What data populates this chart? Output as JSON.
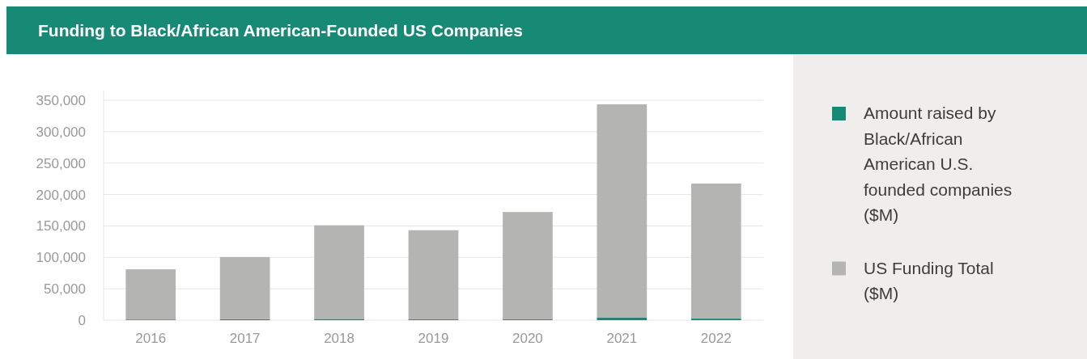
{
  "chart_data": {
    "type": "bar",
    "title": "Funding to Black/African American-Founded US Companies",
    "categories": [
      "2016",
      "2017",
      "2018",
      "2019",
      "2020",
      "2021",
      "2022"
    ],
    "stacked": true,
    "series": [
      {
        "name": "Amount raised by Black/African American U.S. founded companies ($M)",
        "color": "#178a76",
        "values": [
          1000,
          1500,
          2000,
          1200,
          1200,
          4500,
          2500
        ]
      },
      {
        "name": "US Funding Total ($M)",
        "color": "#b4b4b2",
        "values": [
          80000,
          99000,
          149000,
          142000,
          171000,
          339000,
          215000
        ]
      }
    ],
    "ylim": [
      0,
      350000
    ],
    "yticks": [
      {
        "value": 0,
        "label": "0"
      },
      {
        "value": 50000,
        "label": "50,000"
      },
      {
        "value": 100000,
        "label": "100,000"
      },
      {
        "value": 150000,
        "label": "150,000"
      },
      {
        "value": 200000,
        "label": "200,000"
      },
      {
        "value": 250000,
        "label": "250,000"
      },
      {
        "value": 300000,
        "label": "300,000"
      },
      {
        "value": 350000,
        "label": "350,000"
      }
    ],
    "grid": "y",
    "legend": "right"
  }
}
